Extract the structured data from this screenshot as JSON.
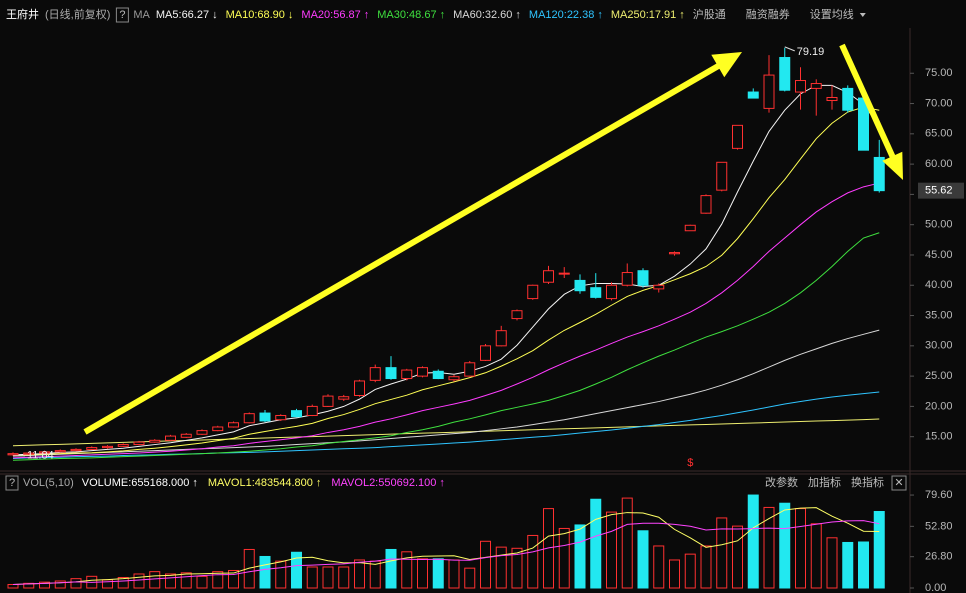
{
  "chart_data": [
    {
      "type": "candlestick",
      "title": "王府井",
      "subtitle": "(日线,前复权)",
      "help": "?",
      "indicator": "MA",
      "up_color": "#ff3030",
      "down_color": "#22e8f0",
      "open": [
        12.0,
        12.1,
        12.3,
        12.5,
        12.7,
        12.9,
        13.2,
        13.4,
        13.7,
        14.1,
        14.4,
        14.9,
        15.4,
        16.0,
        16.6,
        17.3,
        18.9,
        17.8,
        19.3,
        18.5,
        20.0,
        21.2,
        21.8,
        24.3,
        26.4,
        24.6,
        25.0,
        25.8,
        24.4,
        25.0,
        27.6,
        30.0,
        34.5,
        37.8,
        40.5,
        41.9,
        40.8,
        39.6,
        37.8,
        40.0,
        42.4,
        39.4,
        45.2,
        49.0,
        51.9,
        55.7,
        62.6,
        71.9,
        69.2,
        77.6,
        71.9,
        72.5,
        70.5,
        72.5,
        70.9,
        61.1
      ],
      "high": [
        12.4,
        12.5,
        12.7,
        12.9,
        13.1,
        13.4,
        13.6,
        13.9,
        14.3,
        14.6,
        15.3,
        15.6,
        16.2,
        16.8,
        17.5,
        19.0,
        19.4,
        18.7,
        19.6,
        20.3,
        22.0,
        21.9,
        24.4,
        26.9,
        28.3,
        26.2,
        26.6,
        26.1,
        25.2,
        27.5,
        30.3,
        33.3,
        36.0,
        40.1,
        43.2,
        43.0,
        41.8,
        42.0,
        40.5,
        43.6,
        42.8,
        40.3,
        45.6,
        50.0,
        55.0,
        60.3,
        66.4,
        72.5,
        78.0,
        79.19,
        76.0,
        74.0,
        73.0,
        73.0,
        71.5,
        64.0
      ],
      "low": [
        11.84,
        12.0,
        12.2,
        12.4,
        12.6,
        12.8,
        13.0,
        13.3,
        13.6,
        14.0,
        14.3,
        14.8,
        15.3,
        15.9,
        16.5,
        17.2,
        17.4,
        17.6,
        18.2,
        18.4,
        19.9,
        20.9,
        21.6,
        24.0,
        24.4,
        24.3,
        24.8,
        24.5,
        24.1,
        24.9,
        27.5,
        29.9,
        34.2,
        37.6,
        40.2,
        41.2,
        38.6,
        37.8,
        37.5,
        39.8,
        39.6,
        38.8,
        44.9,
        49.0,
        51.8,
        55.5,
        62.4,
        70.9,
        68.5,
        72.0,
        69.0,
        68.0,
        69.0,
        68.5,
        62.3,
        55.3
      ],
      "close": [
        12.2,
        12.3,
        12.5,
        12.7,
        12.9,
        13.2,
        13.4,
        13.7,
        14.1,
        14.4,
        15.1,
        15.4,
        16.0,
        16.6,
        17.3,
        18.8,
        17.6,
        18.5,
        18.3,
        20.0,
        21.7,
        21.6,
        24.2,
        26.4,
        24.6,
        26.0,
        26.4,
        24.6,
        24.9,
        27.2,
        30.0,
        32.5,
        35.8,
        40.0,
        42.4,
        42.0,
        39.1,
        38.0,
        40.0,
        42.1,
        40.0,
        40.0,
        45.4,
        49.9,
        54.8,
        60.3,
        66.4,
        70.9,
        74.7,
        72.2,
        73.8,
        73.3,
        71.0,
        68.9,
        62.3,
        55.62
      ],
      "ylim": [
        9.5,
        79.5
      ],
      "yticks": [
        {
          "value": 15,
          "label": "15.00"
        },
        {
          "value": 20,
          "label": "20.00"
        },
        {
          "value": 25,
          "label": "25.00"
        },
        {
          "value": 30,
          "label": "30.00"
        },
        {
          "value": 35,
          "label": "35.00"
        },
        {
          "value": 40,
          "label": "40.00"
        },
        {
          "value": 45,
          "label": "45.00"
        },
        {
          "value": 50,
          "label": "50.00"
        },
        {
          "value": 55,
          "label": "55.00"
        },
        {
          "value": 60,
          "label": "60.00"
        },
        {
          "value": 65,
          "label": "65.00"
        },
        {
          "value": 70,
          "label": "70.00"
        },
        {
          "value": 75,
          "label": "75.00"
        }
      ],
      "grid": false,
      "ma_series": [
        {
          "name": "MA5:66.27",
          "trend": "↓",
          "color": "#f4f4f4",
          "values": [
            12.0,
            12.1,
            12.2,
            12.4,
            12.5,
            12.7,
            12.9,
            13.1,
            13.4,
            13.7,
            14.0,
            14.4,
            14.8,
            15.3,
            15.8,
            16.8,
            17.3,
            17.8,
            18.1,
            18.6,
            19.2,
            20.0,
            21.2,
            22.8,
            23.7,
            24.5,
            25.5,
            25.6,
            25.3,
            25.8,
            26.6,
            27.8,
            30.1,
            33.1,
            36.1,
            38.5,
            39.9,
            40.3,
            40.3,
            40.2,
            39.8,
            40.0,
            41.5,
            43.5,
            46.0,
            50.1,
            55.4,
            60.5,
            65.4,
            68.9,
            71.6,
            73.0,
            73.0,
            71.8,
            69.9,
            66.27
          ]
        },
        {
          "name": "MA10:68.90",
          "trend": "↓",
          "color": "#ffff55",
          "values": [
            11.9,
            12.0,
            12.1,
            12.2,
            12.3,
            12.35,
            12.5,
            12.65,
            12.9,
            13.1,
            13.35,
            13.65,
            13.95,
            14.35,
            14.75,
            15.4,
            15.85,
            16.3,
            16.7,
            17.2,
            18.0,
            18.65,
            19.5,
            20.45,
            21.15,
            21.85,
            22.75,
            23.4,
            24.05,
            24.75,
            25.55,
            26.65,
            27.85,
            29.2,
            30.95,
            32.55,
            33.85,
            35.2,
            36.7,
            38.15,
            39.15,
            39.95,
            40.9,
            41.9,
            43.1,
            44.95,
            47.7,
            51.0,
            54.45,
            57.45,
            60.85,
            64.2,
            66.75,
            68.6,
            69.4,
            68.9
          ]
        },
        {
          "name": "MA20:56.87",
          "trend": "↑",
          "color": "#ff3cff",
          "values": [
            11.5,
            11.6,
            11.7,
            11.8,
            11.9,
            12.0,
            12.1,
            12.2,
            12.3,
            12.45,
            12.6,
            12.8,
            13.0,
            13.3,
            13.5,
            13.9,
            14.2,
            14.5,
            14.8,
            15.15,
            15.7,
            16.15,
            16.7,
            17.4,
            17.95,
            18.6,
            19.3,
            19.85,
            20.4,
            21.0,
            21.8,
            22.65,
            23.7,
            24.8,
            26.05,
            27.2,
            28.3,
            29.3,
            30.4,
            31.45,
            32.35,
            33.3,
            34.4,
            35.55,
            37.0,
            38.75,
            40.8,
            43.1,
            45.6,
            47.8,
            50.0,
            52.1,
            53.8,
            55.25,
            56.25,
            56.87
          ]
        },
        {
          "name": "MA30:48.67",
          "trend": "↑",
          "color": "#3fe03f",
          "values": [
            11.1,
            11.2,
            11.3,
            11.4,
            11.45,
            11.5,
            11.6,
            11.7,
            11.8,
            11.9,
            12.0,
            12.1,
            12.2,
            12.3,
            12.45,
            12.6,
            12.8,
            13.0,
            13.3,
            13.5,
            13.9,
            14.2,
            14.5,
            14.8,
            15.15,
            15.7,
            16.15,
            16.7,
            17.4,
            17.95,
            18.6,
            19.3,
            19.85,
            20.4,
            21.0,
            21.8,
            22.65,
            23.7,
            24.8,
            26.05,
            27.2,
            28.3,
            29.3,
            30.4,
            31.45,
            32.35,
            33.3,
            34.4,
            35.55,
            37.0,
            38.75,
            40.8,
            43.1,
            45.6,
            47.8,
            48.67
          ]
        },
        {
          "name": "MA60:32.60",
          "trend": "↑",
          "color": "#d8d8d8",
          "values": [
            11.8,
            11.9,
            12.0,
            12.1,
            12.2,
            12.3,
            12.4,
            12.5,
            12.6,
            12.7,
            12.8,
            12.9,
            13.0,
            13.1,
            13.2,
            13.3,
            13.4,
            13.55,
            13.7,
            13.85,
            14.0,
            14.15,
            14.3,
            14.5,
            14.7,
            14.9,
            15.1,
            15.3,
            15.5,
            15.7,
            16.0,
            16.3,
            16.6,
            17.0,
            17.4,
            17.8,
            18.3,
            18.8,
            19.3,
            19.8,
            20.3,
            20.8,
            21.4,
            22.0,
            22.7,
            23.5,
            24.4,
            25.4,
            26.5,
            27.6,
            28.6,
            29.5,
            30.4,
            31.2,
            31.9,
            32.6
          ]
        },
        {
          "name": "MA120:22.38",
          "trend": "↑",
          "color": "#2fc4ff",
          "values": [
            11.4,
            11.5,
            11.55,
            11.6,
            11.7,
            11.75,
            11.8,
            11.9,
            11.95,
            12.0,
            12.1,
            12.15,
            12.2,
            12.3,
            12.35,
            12.4,
            12.5,
            12.6,
            12.7,
            12.8,
            12.9,
            13.0,
            13.1,
            13.2,
            13.35,
            13.5,
            13.65,
            13.8,
            13.95,
            14.1,
            14.3,
            14.5,
            14.7,
            14.9,
            15.1,
            15.35,
            15.6,
            15.85,
            16.1,
            16.4,
            16.7,
            17.0,
            17.35,
            17.7,
            18.1,
            18.5,
            18.95,
            19.4,
            19.9,
            20.4,
            20.8,
            21.2,
            21.55,
            21.85,
            22.1,
            22.38
          ]
        },
        {
          "name": "MA250:17.91",
          "trend": "↑",
          "color": "#eeee70",
          "values": [
            13.5,
            13.58,
            13.66,
            13.74,
            13.82,
            13.9,
            13.98,
            14.06,
            14.14,
            14.22,
            14.3,
            14.38,
            14.46,
            14.54,
            14.62,
            14.7,
            14.78,
            14.86,
            14.94,
            15.02,
            15.1,
            15.18,
            15.26,
            15.34,
            15.42,
            15.5,
            15.58,
            15.66,
            15.74,
            15.82,
            15.9,
            15.98,
            16.06,
            16.14,
            16.22,
            16.3,
            16.38,
            16.46,
            16.54,
            16.62,
            16.7,
            16.78,
            16.86,
            16.94,
            17.02,
            17.1,
            17.18,
            17.26,
            17.34,
            17.42,
            17.5,
            17.58,
            17.66,
            17.74,
            17.82,
            17.91
          ]
        }
      ],
      "toolbar": [
        "沪股通",
        "融资融券",
        "设置均线"
      ],
      "marker": "$"
    },
    {
      "type": "bar",
      "title": "VOL(5,10)",
      "help": "?",
      "readout": {
        "text": "VOLUME:655168.000",
        "trend": "↑"
      },
      "values": [
        3,
        4,
        5,
        6,
        8,
        10,
        7,
        9,
        12,
        14,
        12,
        13,
        10,
        14,
        15,
        33,
        27,
        23,
        30.6,
        18,
        18,
        18,
        24,
        23,
        33,
        31,
        25,
        25,
        24,
        17,
        40,
        35,
        34,
        45,
        68,
        51,
        54,
        76,
        65,
        77,
        49,
        36,
        24,
        29,
        36,
        60,
        53,
        79.6,
        69,
        72.6,
        68,
        55,
        43,
        39,
        39.4,
        65.5168
      ],
      "series": [
        {
          "name": "MAVOL1:483544.800",
          "trend": "↑",
          "color": "#ffff66",
          "values": [
            3,
            3.5,
            4,
            4.5,
            5.2,
            6.6,
            7.2,
            8,
            9.2,
            10.4,
            10.8,
            12,
            12.2,
            12.6,
            12.8,
            17,
            19.8,
            22.4,
            25.7,
            26.3,
            23.3,
            21.5,
            21.7,
            20.2,
            23.2,
            25.8,
            27.2,
            27.4,
            27.6,
            24.4,
            26.2,
            28.2,
            30,
            34.2,
            44.4,
            46.6,
            50.4,
            58.8,
            62.8,
            64.6,
            64.2,
            60.6,
            50.2,
            43,
            34.8,
            37,
            40.4,
            51.5,
            59.5,
            66.8,
            68.4,
            68.8,
            61.5,
            55.5,
            48.6,
            48.35448
          ]
        },
        {
          "name": "MAVOL2:550692.100",
          "trend": "↑",
          "color": "#ff44ff",
          "values": [
            3,
            3.5,
            4,
            4.5,
            5.2,
            4.8,
            5.35,
            6,
            6.85,
            7.8,
            8.7,
            9.6,
            10.6,
            11.4,
            11.6,
            13.9,
            15.9,
            17.3,
            19.2,
            19.6,
            20.2,
            20.7,
            22.1,
            23,
            24.8,
            24.6,
            24.4,
            24.6,
            23.9,
            23.8,
            26,
            27.7,
            28.7,
            30.9,
            34.4,
            36.4,
            39.3,
            44.4,
            48.5,
            54.5,
            55.4,
            55.5,
            54.5,
            52.9,
            49.7,
            50.6,
            50.5,
            50.9,
            51.3,
            50.8,
            52.7,
            54.6,
            56.5,
            57.5,
            57.7,
            55.0692
          ]
        }
      ],
      "ylim": [
        0,
        80.5
      ],
      "yticks": [
        {
          "value": 0,
          "label": "0.00"
        },
        {
          "value": 26.8,
          "label": "26.80"
        },
        {
          "value": 52.8,
          "label": "52.80"
        },
        {
          "value": 79.6,
          "label": "79.60"
        }
      ],
      "buttons": [
        "改参数",
        "加指标",
        "换指标"
      ],
      "close": "✕"
    }
  ]
}
